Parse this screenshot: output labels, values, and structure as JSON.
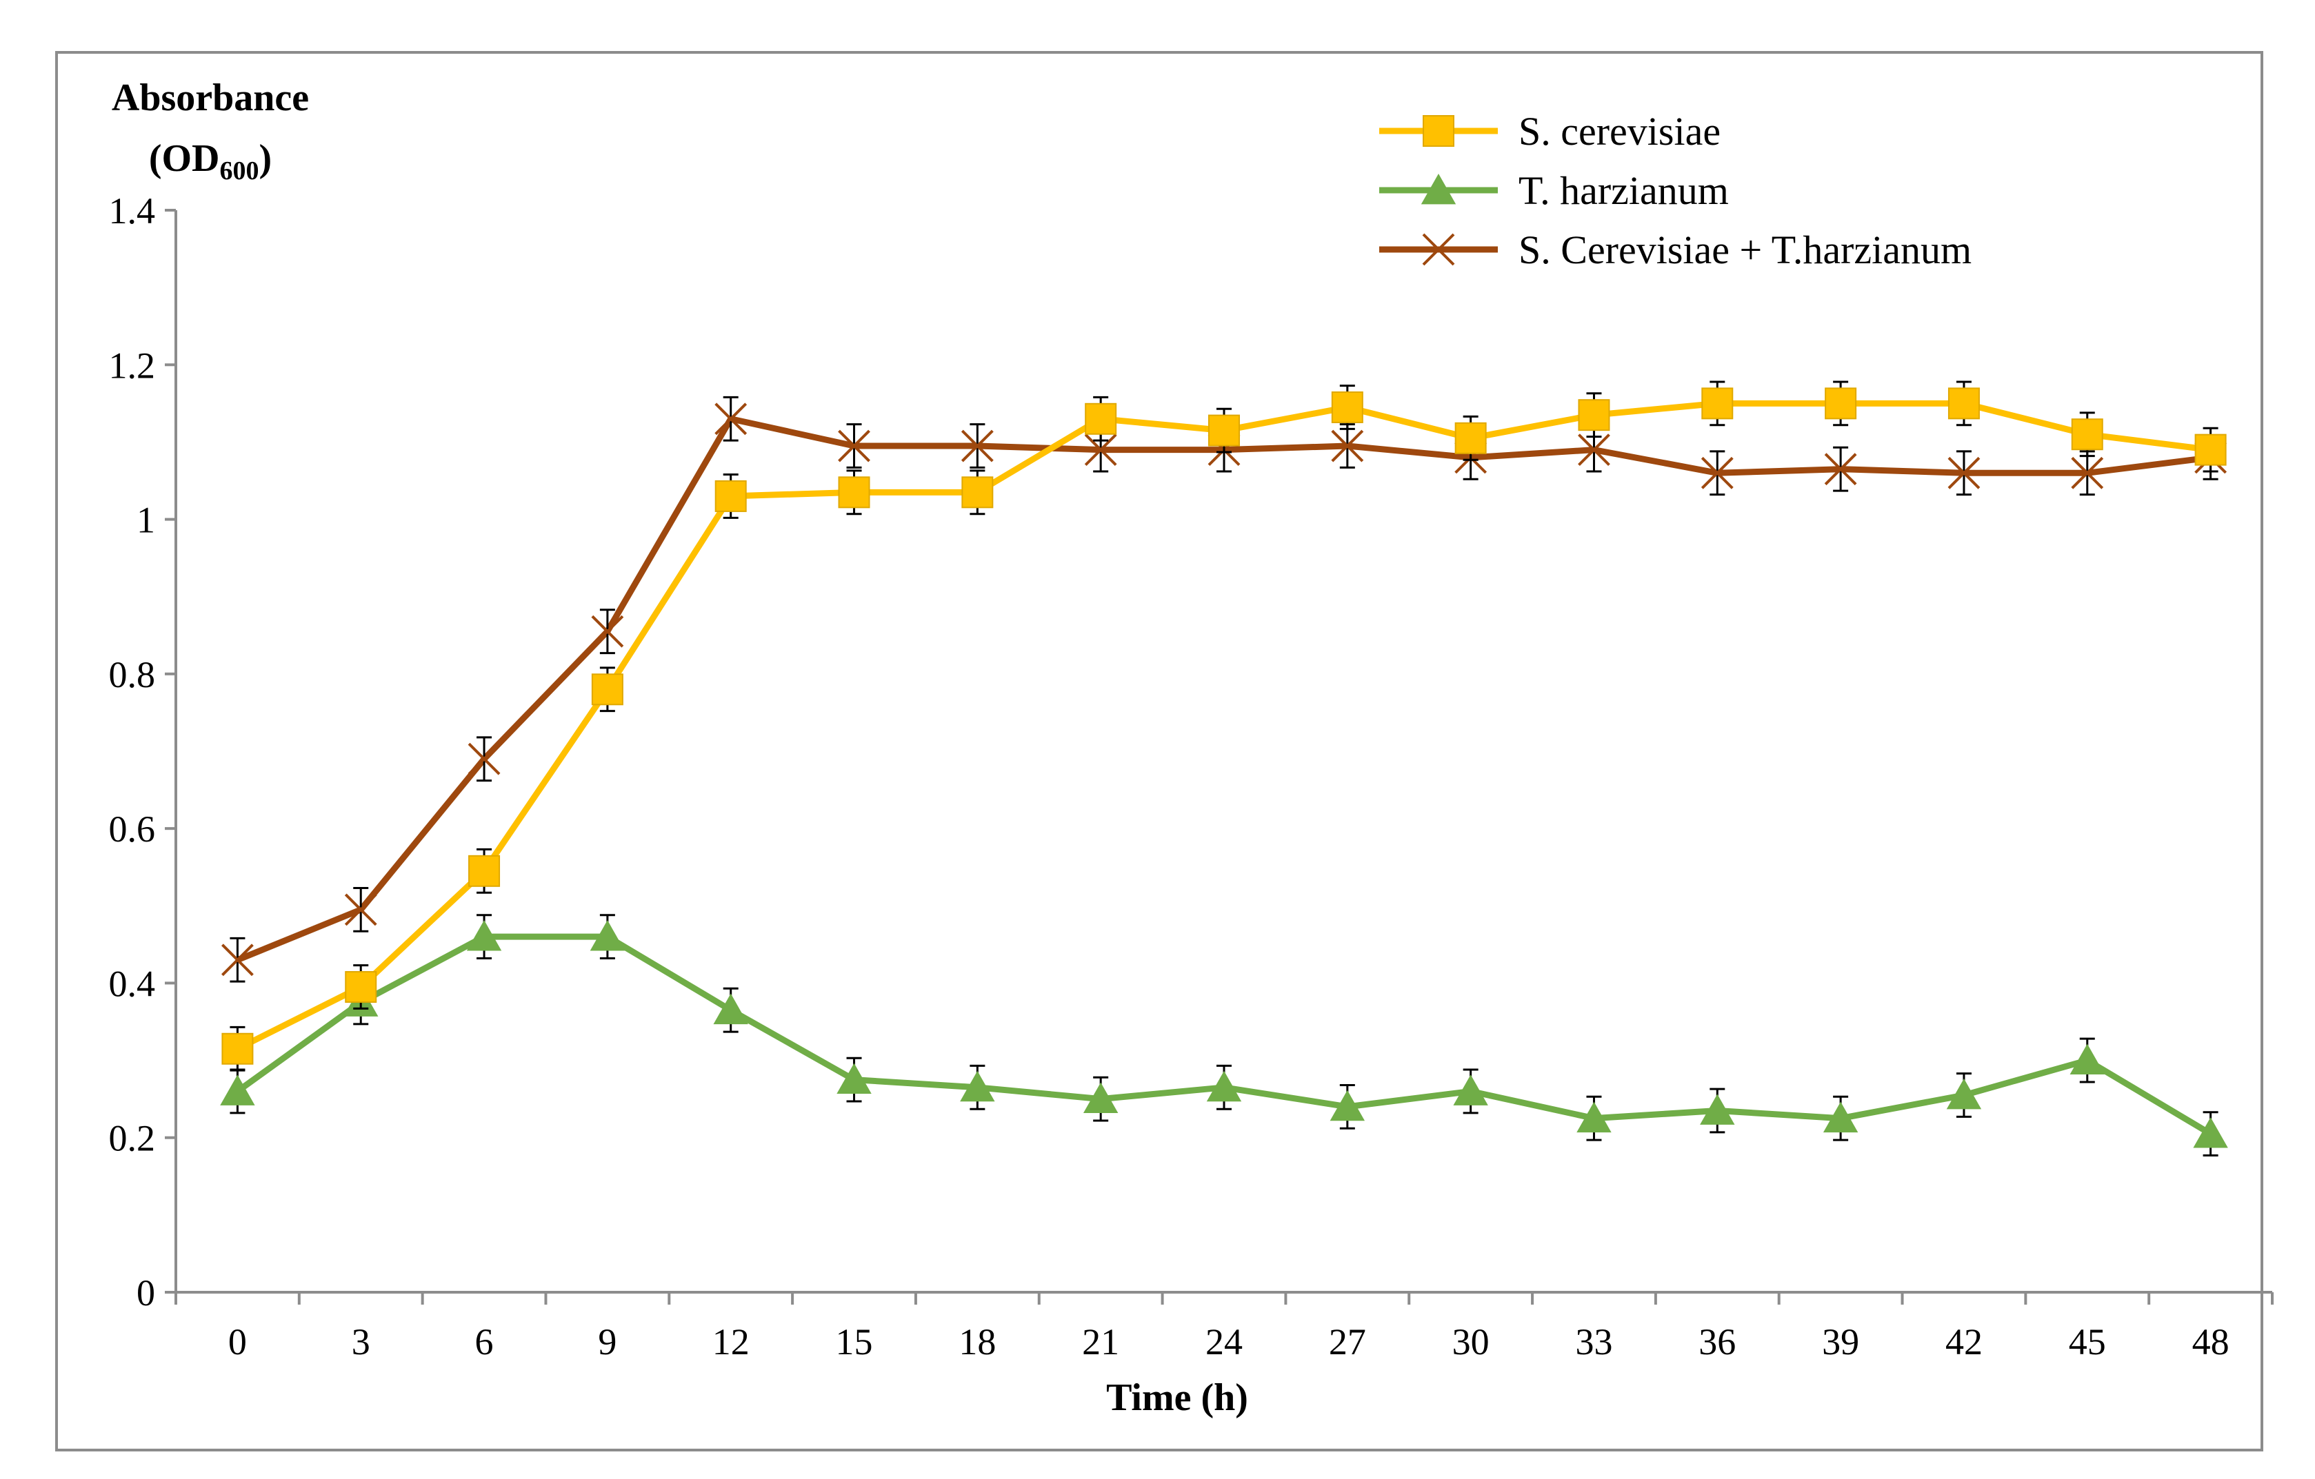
{
  "chart_data": {
    "type": "line",
    "ylabel_line1": "Absorbance",
    "ylabel_od": "(OD",
    "ylabel_sub": "600",
    "ylabel_close": ")",
    "xlabel": "Time (h)",
    "ylim": [
      0,
      1.4
    ],
    "yticks": [
      0,
      0.2,
      0.4,
      0.6,
      0.8,
      1,
      1.2,
      1.4
    ],
    "ytick_labels": [
      "0",
      "0.2",
      "0.4",
      "0.6",
      "0.8",
      "1",
      "1.2",
      "1.4"
    ],
    "x": [
      0,
      3,
      6,
      9,
      12,
      15,
      18,
      21,
      24,
      27,
      30,
      33,
      36,
      39,
      42,
      45,
      48
    ],
    "x_labels": [
      "0",
      "3",
      "6",
      "9",
      "12",
      "15",
      "18",
      "21",
      "24",
      "27",
      "30",
      "33",
      "36",
      "39",
      "42",
      "45",
      "48"
    ],
    "series": [
      {
        "name": "S. cerevisiae",
        "color": "#FFC000",
        "marker": "square",
        "values": [
          0.315,
          0.395,
          0.545,
          0.78,
          1.03,
          1.035,
          1.035,
          1.13,
          1.115,
          1.145,
          1.105,
          1.135,
          1.15,
          1.15,
          1.15,
          1.11,
          1.09
        ],
        "error": [
          0.028,
          0.028,
          0.028,
          0.028,
          0.028,
          0.028,
          0.028,
          0.028,
          0.028,
          0.028,
          0.028,
          0.028,
          0.028,
          0.028,
          0.028,
          0.028,
          0.028
        ]
      },
      {
        "name": "T. harzianum",
        "color": "#70AD47",
        "marker": "triangle",
        "values": [
          0.26,
          0.375,
          0.46,
          0.46,
          0.365,
          0.275,
          0.265,
          0.25,
          0.265,
          0.24,
          0.26,
          0.225,
          0.235,
          0.225,
          0.255,
          0.3,
          0.205
        ],
        "error": [
          0.028,
          0.028,
          0.028,
          0.028,
          0.028,
          0.028,
          0.028,
          0.028,
          0.028,
          0.028,
          0.028,
          0.028,
          0.028,
          0.028,
          0.028,
          0.028,
          0.028
        ]
      },
      {
        "name": "S. Cerevisiae + T.harzianum",
        "color": "#9E480E",
        "marker": "x",
        "values": [
          0.43,
          0.495,
          0.69,
          0.855,
          1.13,
          1.095,
          1.095,
          1.09,
          1.09,
          1.095,
          1.08,
          1.09,
          1.06,
          1.065,
          1.06,
          1.06,
          1.08
        ],
        "error": [
          0.028,
          0.028,
          0.028,
          0.028,
          0.028,
          0.028,
          0.028,
          0.028,
          0.028,
          0.028,
          0.028,
          0.028,
          0.028,
          0.028,
          0.028,
          0.028,
          0.028
        ]
      }
    ],
    "legend_position": "top-right",
    "grid": false
  }
}
